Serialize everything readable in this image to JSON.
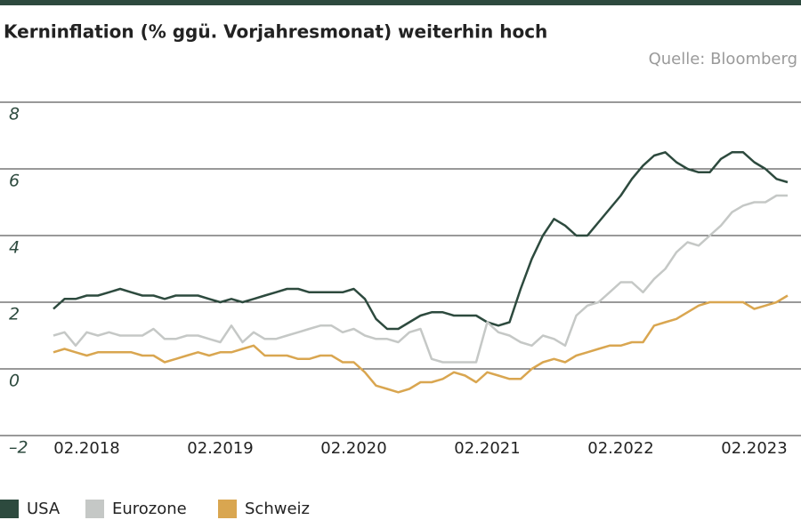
{
  "chart_data": {
    "type": "line",
    "title": "Kerninflation (% ggü. Vorjahresmonat) weiterhin hoch",
    "source": "Quelle: Bloomberg",
    "categories": [
      null,
      null,
      null,
      "02.2018",
      null,
      null,
      null,
      null,
      null,
      null,
      null,
      null,
      null,
      null,
      null,
      "02.2019",
      null,
      null,
      null,
      null,
      null,
      null,
      null,
      null,
      null,
      null,
      null,
      "02.2020",
      null,
      null,
      null,
      null,
      null,
      null,
      null,
      null,
      null,
      null,
      null,
      "02.2021",
      null,
      null,
      null,
      null,
      null,
      null,
      null,
      null,
      null,
      null,
      null,
      "02.2022",
      null,
      null,
      null,
      null,
      null,
      null,
      null,
      null,
      null,
      null,
      null,
      "02.2023",
      null,
      null,
      null
    ],
    "series": [
      {
        "name": "USA",
        "color": "#2d4a3e",
        "values": [
          1.8,
          2.1,
          2.1,
          2.2,
          2.2,
          2.3,
          2.4,
          2.3,
          2.2,
          2.2,
          2.1,
          2.2,
          2.2,
          2.2,
          2.1,
          2.0,
          2.1,
          2.0,
          2.1,
          2.2,
          2.3,
          2.4,
          2.4,
          2.3,
          2.3,
          2.3,
          2.3,
          2.4,
          2.1,
          1.5,
          1.2,
          1.2,
          1.4,
          1.6,
          1.7,
          1.7,
          1.6,
          1.6,
          1.6,
          1.4,
          1.3,
          1.4,
          2.4,
          3.3,
          4.0,
          4.5,
          4.3,
          4.0,
          4.0,
          4.4,
          4.8,
          5.2,
          5.7,
          6.1,
          6.4,
          6.5,
          6.2,
          6.0,
          5.9,
          5.9,
          6.3,
          6.5,
          6.5,
          6.2,
          6.0,
          5.7,
          5.6
        ]
      },
      {
        "name": "Eurozone",
        "color": "#c5c8c6",
        "values": [
          1.0,
          1.1,
          0.7,
          1.1,
          1.0,
          1.1,
          1.0,
          1.0,
          1.0,
          1.2,
          0.9,
          0.9,
          1.0,
          1.0,
          0.9,
          0.8,
          1.3,
          0.8,
          1.1,
          0.9,
          0.9,
          1.0,
          1.1,
          1.2,
          1.3,
          1.3,
          1.1,
          1.2,
          1.0,
          0.9,
          0.9,
          0.8,
          1.1,
          1.2,
          0.3,
          0.2,
          0.2,
          0.2,
          0.2,
          1.4,
          1.1,
          1.0,
          0.8,
          0.7,
          1.0,
          0.9,
          0.7,
          1.6,
          1.9,
          2.0,
          2.3,
          2.6,
          2.6,
          2.3,
          2.7,
          3.0,
          3.5,
          3.8,
          3.7,
          4.0,
          4.3,
          4.7,
          4.9,
          5.0,
          5.0,
          5.2,
          5.2
        ]
      },
      {
        "name": "Schweiz",
        "color": "#d9a650",
        "values": [
          0.5,
          0.6,
          0.5,
          0.4,
          0.5,
          0.5,
          0.5,
          0.5,
          0.4,
          0.4,
          0.2,
          0.3,
          0.4,
          0.5,
          0.4,
          0.5,
          0.5,
          0.6,
          0.7,
          0.4,
          0.4,
          0.4,
          0.3,
          0.3,
          0.4,
          0.4,
          0.2,
          0.2,
          -0.1,
          -0.5,
          -0.6,
          -0.7,
          -0.6,
          -0.4,
          -0.4,
          -0.3,
          -0.1,
          -0.2,
          -0.4,
          -0.1,
          -0.2,
          -0.3,
          -0.3,
          0.0,
          0.2,
          0.3,
          0.2,
          0.4,
          0.5,
          0.6,
          0.7,
          0.7,
          0.8,
          0.8,
          1.3,
          1.4,
          1.5,
          1.7,
          1.9,
          2.0,
          2.0,
          2.0,
          2.0,
          1.8,
          1.9,
          2.0,
          2.2
        ]
      }
    ],
    "ylim": [
      -2,
      8
    ],
    "yticks": [
      {
        "value": -2,
        "label": "–2"
      },
      0,
      2,
      4,
      6,
      8
    ],
    "grid": true,
    "legend": "bottom"
  }
}
